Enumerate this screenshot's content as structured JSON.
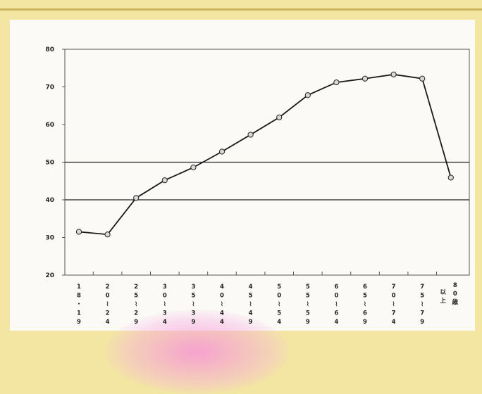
{
  "chart_data": {
    "type": "line",
    "title": "",
    "xlabel": "",
    "ylabel": "",
    "ylim": [
      20,
      80
    ],
    "yticks": [
      20,
      30,
      40,
      50,
      60,
      70,
      80
    ],
    "categories": [
      "18・19",
      "20〜24",
      "25〜29",
      "30〜34",
      "35〜39",
      "40〜44",
      "45〜49",
      "50〜54",
      "55〜59",
      "60〜64",
      "65〜69",
      "70〜74",
      "75〜79",
      "80歳以上"
    ],
    "category_labels": [
      [
        "1",
        "8",
        "・",
        "1",
        "9"
      ],
      [
        "2",
        "0",
        "↓",
        "2",
        "4"
      ],
      [
        "2",
        "5",
        "↓",
        "2",
        "9"
      ],
      [
        "3",
        "0",
        "↓",
        "3",
        "4"
      ],
      [
        "3",
        "5",
        "↓",
        "3",
        "9"
      ],
      [
        "4",
        "0",
        "↓",
        "4",
        "4"
      ],
      [
        "4",
        "5",
        "↓",
        "4",
        "9"
      ],
      [
        "5",
        "0",
        "↓",
        "5",
        "4"
      ],
      [
        "5",
        "5",
        "↓",
        "5",
        "9"
      ],
      [
        "6",
        "0",
        "↓",
        "6",
        "4"
      ],
      [
        "6",
        "5",
        "↓",
        "6",
        "9"
      ],
      [
        "7",
        "0",
        "↓",
        "7",
        "4"
      ],
      [
        "7",
        "5",
        "↓",
        "7",
        "9"
      ],
      [
        "以上",
        "8",
        "0",
        "歳"
      ]
    ],
    "series": [
      {
        "values": [
          31.5,
          30.8,
          40.5,
          45.2,
          48.6,
          52.8,
          57.3,
          61.9,
          67.8,
          71.2,
          72.2,
          73.3,
          72.2,
          45.9
        ]
      }
    ],
    "reference_lines": [
      40,
      50
    ],
    "grid": false,
    "line_color": "#1a1a1a",
    "marker_fill": "#d9d9d9"
  }
}
